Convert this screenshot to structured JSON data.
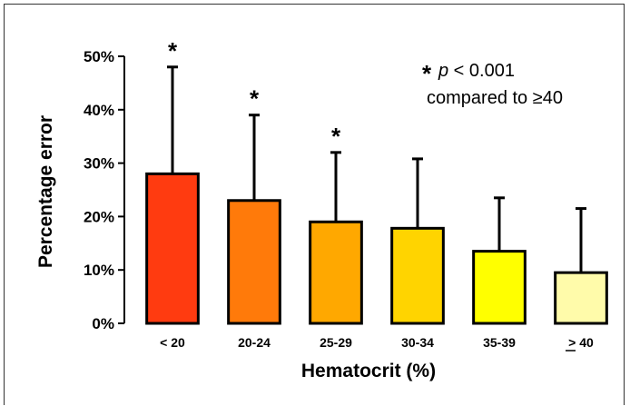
{
  "chart_data": {
    "type": "bar",
    "xlabel": "Hematocrit (%)",
    "ylabel": "Percentage error",
    "ylim": [
      0,
      50
    ],
    "yticks": [
      0,
      10,
      20,
      30,
      40,
      50
    ],
    "ytick_labels": [
      "0%",
      "10%",
      "20%",
      "30%",
      "40%",
      "50%"
    ],
    "categories": [
      "< 20",
      "20-24",
      "25-29",
      "30-34",
      "35-39",
      "> 40"
    ],
    "category_underline": [
      false,
      false,
      false,
      false,
      false,
      true
    ],
    "values": [
      28,
      23,
      19,
      17.8,
      13.5,
      9.5
    ],
    "error_upper": [
      48,
      39,
      32,
      30.8,
      23.5,
      21.5
    ],
    "significant": [
      true,
      true,
      true,
      false,
      false,
      false
    ],
    "bar_colors": [
      "#FF3B10",
      "#FF7A0A",
      "#FFA800",
      "#FFD400",
      "#FFFF00",
      "#FFFBAA"
    ],
    "significance_marker": "*",
    "annotation": {
      "star": "*",
      "p_symbol": "p",
      "p_text": " < 0.001",
      "line2": "compared to ≥40"
    }
  }
}
